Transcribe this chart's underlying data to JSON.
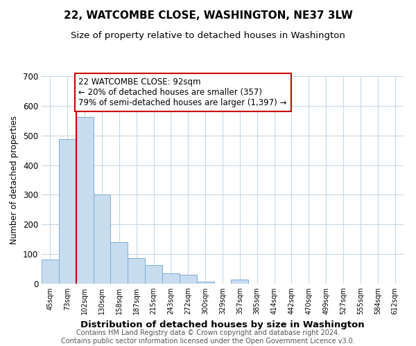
{
  "title": "22, WATCOMBE CLOSE, WASHINGTON, NE37 3LW",
  "subtitle": "Size of property relative to detached houses in Washington",
  "xlabel": "Distribution of detached houses by size in Washington",
  "ylabel": "Number of detached properties",
  "bin_labels": [
    "45sqm",
    "73sqm",
    "102sqm",
    "130sqm",
    "158sqm",
    "187sqm",
    "215sqm",
    "243sqm",
    "272sqm",
    "300sqm",
    "329sqm",
    "357sqm",
    "385sqm",
    "414sqm",
    "442sqm",
    "470sqm",
    "499sqm",
    "527sqm",
    "555sqm",
    "584sqm",
    "612sqm"
  ],
  "bar_heights": [
    82,
    487,
    562,
    302,
    140,
    87,
    64,
    36,
    30,
    8,
    0,
    13,
    0,
    0,
    0,
    0,
    0,
    0,
    0,
    0,
    0
  ],
  "bar_color": "#c8dcf0",
  "bar_edge_color": "#7aadd4",
  "vline_x_index": 2,
  "vline_color": "#cc0000",
  "annotation_line1": "22 WATCOMBE CLOSE: 92sqm",
  "annotation_line2": "← 20% of detached houses are smaller (357)",
  "annotation_line3": "79% of semi-detached houses are larger (1,397) →",
  "annotation_box_edge": "#cc0000",
  "annotation_fontsize": 8.5,
  "ylim": [
    0,
    700
  ],
  "yticks": [
    0,
    100,
    200,
    300,
    400,
    500,
    600,
    700
  ],
  "footer_line1": "Contains HM Land Registry data © Crown copyright and database right 2024.",
  "footer_line2": "Contains public sector information licensed under the Open Government Licence v3.0.",
  "title_fontsize": 11,
  "subtitle_fontsize": 9.5,
  "xlabel_fontsize": 9.5,
  "ylabel_fontsize": 8.5,
  "footer_fontsize": 7,
  "background_color": "#ffffff",
  "grid_color": "#c8d8e8"
}
